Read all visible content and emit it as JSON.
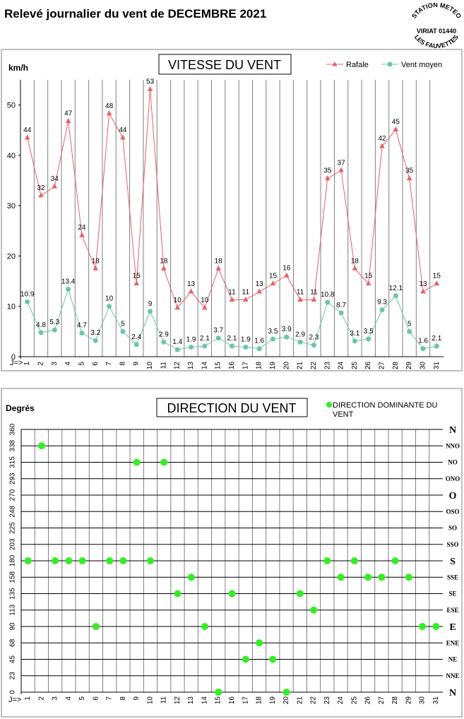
{
  "page_title": "Relevé journalier du vent de DECEMBRE 2021",
  "stamp": {
    "top": "STATION METEO",
    "middle": "VIRIAT 01440",
    "bottom": "LES FAUVETTES"
  },
  "chart_data": [
    {
      "type": "line",
      "title": "VITESSE DU VENT",
      "ylabel": "km/h",
      "x_prefix": "J=>",
      "x": [
        1,
        2,
        3,
        4,
        5,
        6,
        7,
        8,
        9,
        10,
        11,
        12,
        13,
        14,
        15,
        16,
        17,
        18,
        19,
        20,
        21,
        22,
        23,
        24,
        25,
        26,
        27,
        28,
        29,
        30,
        31
      ],
      "ylim": [
        0,
        55
      ],
      "yticks": [
        0,
        10,
        20,
        30,
        40,
        50
      ],
      "legend_position": "top-right",
      "series": [
        {
          "name": "Rafale",
          "color": "#e8606a",
          "marker": "triangle",
          "values": [
            43.5,
            32,
            33.8,
            46.8,
            24.1,
            17.5,
            48.3,
            43.5,
            14.5,
            53.1,
            17.5,
            9.7,
            12.9,
            9.7,
            17.5,
            11.3,
            11.3,
            12.9,
            14.5,
            16.1,
            11.3,
            11.3,
            35.4,
            37,
            17.5,
            14.5,
            41.8,
            45.1,
            35.4,
            12.9,
            14.5
          ],
          "labels": [
            "44",
            "32",
            "34",
            "47",
            "24",
            "18",
            "48",
            "44",
            "15",
            "53",
            "18",
            "10",
            "13",
            "10",
            "18",
            "11",
            "11",
            "13",
            "15",
            "16",
            "11",
            "11",
            "35",
            "37",
            "18",
            "15",
            "42",
            "45",
            "35",
            "13",
            "15"
          ]
        },
        {
          "name": "Vent moyen",
          "color": "#6cc7a0",
          "marker": "circle",
          "values": [
            10.9,
            4.8,
            5.3,
            13.4,
            4.7,
            3.2,
            10,
            5,
            2.4,
            9,
            2.9,
            1.4,
            1.9,
            2.1,
            3.7,
            2.1,
            1.9,
            1.6,
            3.5,
            3.9,
            2.9,
            2.3,
            10.8,
            8.7,
            3.1,
            3.5,
            9.3,
            12.1,
            5,
            1.6,
            2.1
          ],
          "labels": [
            "10.9",
            "4.8",
            "5.3",
            "13.4",
            "4.7",
            "3.2",
            "10",
            "5",
            "2.4",
            "9",
            "2.9",
            "1.4",
            "1.9",
            "2.1",
            "3.7",
            "2.1",
            "1.9",
            "1.6",
            "3.5",
            "3.9",
            "2.9",
            "2.3",
            "10.8",
            "8.7",
            "3.1",
            "3.5",
            "9.3",
            "12.1",
            "5",
            "1.6",
            "2.1"
          ]
        }
      ]
    },
    {
      "type": "scatter",
      "title": "DIRECTION DU VENT",
      "ylabel": "Degrés",
      "x_prefix": "J=>",
      "x": [
        1,
        2,
        3,
        4,
        5,
        6,
        7,
        8,
        9,
        10,
        11,
        12,
        13,
        14,
        15,
        16,
        17,
        18,
        19,
        20,
        21,
        22,
        23,
        24,
        25,
        26,
        27,
        28,
        29,
        30,
        31
      ],
      "ylim": [
        0,
        360
      ],
      "yticks": [
        0,
        23,
        45,
        68,
        90,
        113,
        135,
        158,
        180,
        203,
        225,
        248,
        270,
        293,
        315,
        338,
        360
      ],
      "right_labels": [
        "N",
        "NNE",
        "NE",
        "ENE",
        "E",
        "ESE",
        "SE",
        "SSE",
        "S",
        "SSO",
        "SO",
        "OSO",
        "O",
        "ONO",
        "NO",
        "NNO",
        "N"
      ],
      "legend_position": "top-right",
      "series": [
        {
          "name": "DIRECTION DOMINANTE DU VENT",
          "color": "#33ee22",
          "marker": "circle",
          "values": [
            180,
            337.5,
            180,
            180,
            180,
            90,
            180,
            180,
            315,
            180,
            315,
            135,
            157.5,
            90,
            0,
            135,
            45,
            67.5,
            45,
            0,
            135,
            112.5,
            180,
            157.5,
            180,
            157.5,
            157.5,
            180,
            157.5,
            90,
            90
          ]
        }
      ]
    }
  ]
}
